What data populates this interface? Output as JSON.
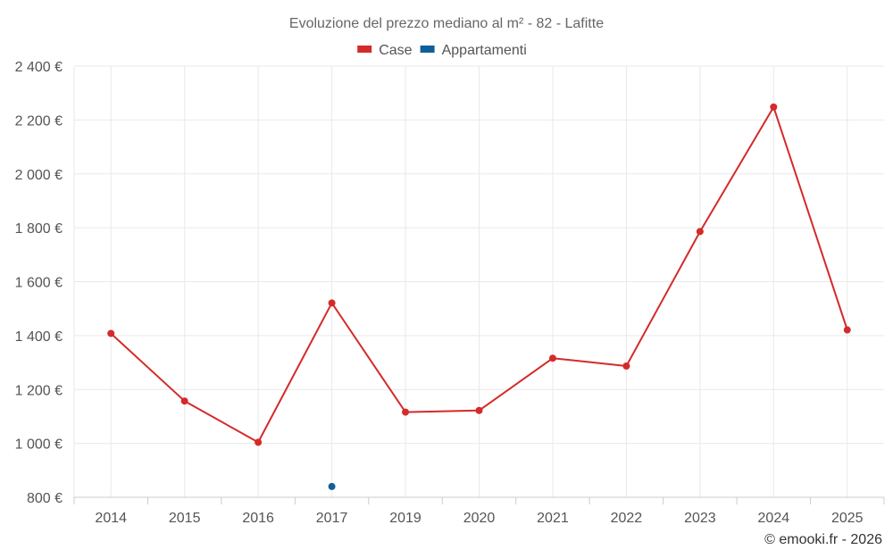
{
  "chart_data": {
    "type": "line",
    "title": "Evoluzione del prezzo mediano al m² - 82 - Lafitte",
    "categories": [
      "2014",
      "2015",
      "2016",
      "2017",
      "2019",
      "2020",
      "2021",
      "2022",
      "2023",
      "2024",
      "2025"
    ],
    "series": [
      {
        "name": "Case",
        "color": "#d42a2a",
        "values": [
          1408,
          1157,
          1004,
          1521,
          1116,
          1122,
          1316,
          1287,
          1786,
          2248,
          1421
        ]
      },
      {
        "name": "Appartamenti",
        "color": "#0f5f99",
        "values": [
          null,
          null,
          null,
          840,
          null,
          null,
          null,
          null,
          null,
          null,
          null
        ]
      }
    ],
    "ylim": [
      800,
      2400
    ],
    "yticks": [
      800,
      1000,
      1200,
      1400,
      1600,
      1800,
      2000,
      2200,
      2400
    ],
    "ytick_labels": [
      "800 €",
      "1 000 €",
      "1 200 €",
      "1 400 €",
      "1 600 €",
      "1 800 €",
      "2 000 €",
      "2 200 €",
      "2 400 €"
    ],
    "grid": true,
    "legend_position": "top-center",
    "credit": "© emooki.fr - 2026"
  }
}
